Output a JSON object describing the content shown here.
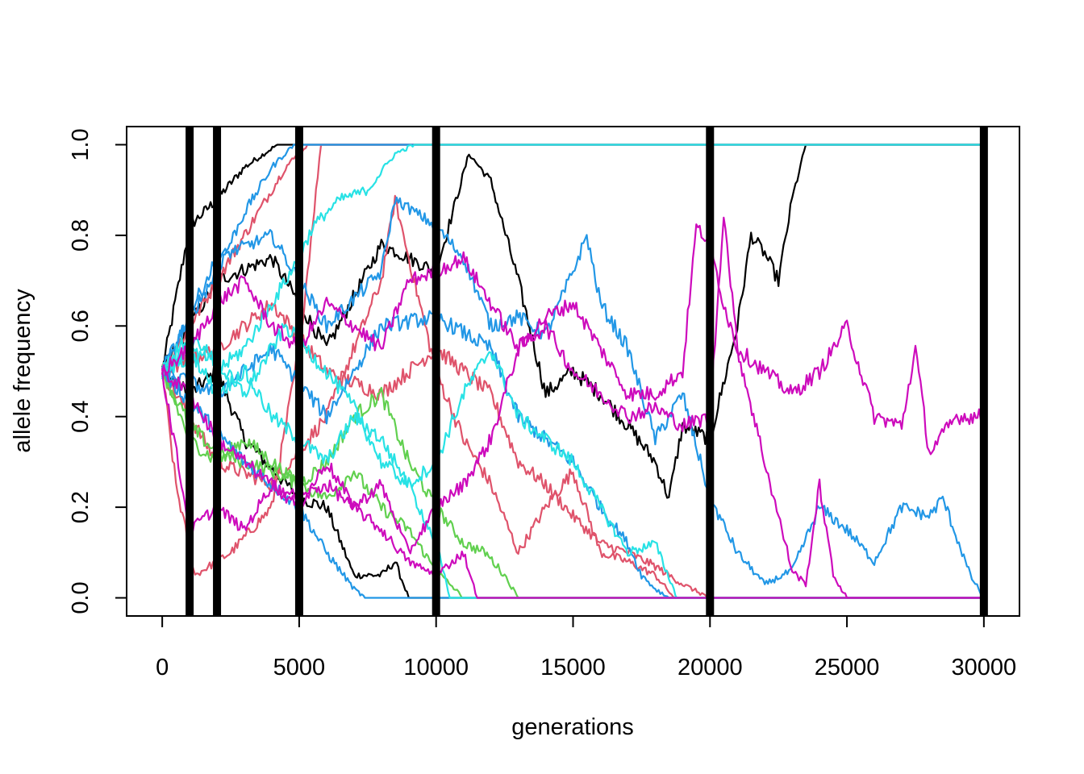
{
  "chart_data": {
    "type": "line",
    "title": "",
    "xlabel": "generations",
    "ylabel": "allele frequency",
    "xlim": [
      -1300,
      31300
    ],
    "ylim": [
      -0.04,
      1.04
    ],
    "x_ticks": [
      0,
      5000,
      10000,
      15000,
      20000,
      25000,
      30000
    ],
    "x_tick_labels": [
      "0",
      "5000",
      "10000",
      "15000",
      "20000",
      "25000",
      "30000"
    ],
    "y_ticks": [
      0.0,
      0.2,
      0.4,
      0.6,
      0.8,
      1.0
    ],
    "y_tick_labels": [
      "0.0",
      "0.2",
      "0.4",
      "0.6",
      "0.8",
      "1.0"
    ],
    "grid": false,
    "legend": "none",
    "vertical_lines": [
      1000,
      2000,
      5000,
      10000,
      20000,
      30000
    ],
    "vertical_line_color": "#000000",
    "series": [
      {
        "color": "#000000",
        "x": [
          0,
          1000,
          2000,
          3000,
          4200,
          30000
        ],
        "y": [
          0.5,
          0.82,
          0.88,
          0.95,
          1.0,
          1.0
        ]
      },
      {
        "color": "#000000",
        "x": [
          0,
          1000,
          2000,
          3000,
          5000,
          6000,
          7000,
          8000,
          8500,
          9000,
          10000,
          11500,
          30000
        ],
        "y": [
          0.5,
          0.45,
          0.5,
          0.35,
          0.22,
          0.2,
          0.05,
          0.05,
          0.08,
          0.0,
          0.0,
          0.0,
          0.0
        ]
      },
      {
        "color": "#000000",
        "x": [
          0,
          1000,
          2000,
          4000,
          6000,
          8000,
          10000,
          11200,
          12000,
          13000,
          14000,
          15000,
          16000,
          17000,
          18000,
          18500,
          19000,
          20000,
          21000,
          21500,
          22000,
          22500,
          23000,
          23500,
          30000
        ],
        "y": [
          0.5,
          0.6,
          0.7,
          0.75,
          0.55,
          0.78,
          0.72,
          0.98,
          0.92,
          0.7,
          0.45,
          0.5,
          0.45,
          0.38,
          0.3,
          0.22,
          0.38,
          0.35,
          0.6,
          0.8,
          0.76,
          0.7,
          0.88,
          1.0,
          1.0
        ]
      },
      {
        "color": "#DF536B",
        "x": [
          0,
          500,
          1200,
          2500,
          4000,
          5000,
          5800,
          30000
        ],
        "y": [
          0.5,
          0.25,
          0.05,
          0.1,
          0.2,
          0.55,
          1.0,
          1.0
        ]
      },
      {
        "color": "#DF536B",
        "x": [
          0,
          1000,
          2000,
          3000,
          4500,
          5300,
          30000
        ],
        "y": [
          0.5,
          0.6,
          0.7,
          0.8,
          0.95,
          1.0,
          1.0
        ]
      },
      {
        "color": "#DF536B",
        "x": [
          0,
          2000,
          4000,
          6000,
          8000,
          8500,
          9000,
          10000,
          11000,
          12000,
          13000,
          14000,
          15000,
          16000,
          17000,
          18000,
          18700,
          30000
        ],
        "y": [
          0.5,
          0.3,
          0.25,
          0.4,
          0.7,
          0.88,
          0.75,
          0.5,
          0.35,
          0.25,
          0.1,
          0.2,
          0.28,
          0.1,
          0.08,
          0.05,
          0.0,
          0.0
        ]
      },
      {
        "color": "#DF536B",
        "x": [
          0,
          2000,
          4000,
          6000,
          8000,
          10000,
          11000,
          12000,
          13000,
          14000,
          15000,
          16000,
          17000,
          18000,
          19000,
          20000,
          30000
        ],
        "y": [
          0.5,
          0.55,
          0.65,
          0.5,
          0.45,
          0.55,
          0.5,
          0.45,
          0.3,
          0.25,
          0.18,
          0.12,
          0.1,
          0.07,
          0.03,
          0.0,
          0.0
        ]
      },
      {
        "color": "#61D04F",
        "x": [
          0,
          1000,
          2000,
          3000,
          4000,
          5000,
          6000,
          7000,
          8000,
          9000,
          10000,
          11000,
          11800,
          12500,
          13000,
          30000
        ],
        "y": [
          0.5,
          0.35,
          0.3,
          0.35,
          0.3,
          0.25,
          0.3,
          0.4,
          0.45,
          0.3,
          0.2,
          0.12,
          0.1,
          0.05,
          0.0,
          0.0
        ]
      },
      {
        "color": "#61D04F",
        "x": [
          0,
          1000,
          2000,
          4000,
          6000,
          7000,
          8000,
          9000,
          10000,
          11000,
          30000
        ],
        "y": [
          0.5,
          0.38,
          0.32,
          0.28,
          0.22,
          0.28,
          0.2,
          0.15,
          0.06,
          0.0,
          0.0
        ]
      },
      {
        "color": "#2297E6",
        "x": [
          0,
          1000,
          2000,
          3000,
          4000,
          4800,
          30000
        ],
        "y": [
          0.5,
          0.62,
          0.72,
          0.85,
          0.95,
          1.0,
          1.0
        ]
      },
      {
        "color": "#2297E6",
        "x": [
          0,
          1500,
          3000,
          5000,
          6000,
          7000,
          7400,
          30000
        ],
        "y": [
          0.5,
          0.4,
          0.3,
          0.2,
          0.1,
          0.02,
          0.0,
          0.0
        ]
      },
      {
        "color": "#2297E6",
        "x": [
          0,
          2000,
          4000,
          6000,
          8000,
          8500,
          10000,
          11000,
          12000,
          13000,
          14000,
          15000,
          15500,
          16000,
          17000,
          18000,
          19000,
          20000,
          21000,
          22000,
          23000,
          24000,
          25000,
          26000,
          27000,
          28000,
          28500,
          29500,
          30000
        ],
        "y": [
          0.5,
          0.75,
          0.8,
          0.6,
          0.72,
          0.88,
          0.82,
          0.75,
          0.6,
          0.62,
          0.58,
          0.72,
          0.8,
          0.65,
          0.55,
          0.35,
          0.45,
          0.22,
          0.1,
          0.03,
          0.06,
          0.2,
          0.15,
          0.08,
          0.2,
          0.18,
          0.22,
          0.05,
          0.0
        ]
      },
      {
        "color": "#2297E6",
        "x": [
          0,
          2000,
          4000,
          6000,
          8000,
          10000,
          12000,
          13000,
          14000,
          15000,
          16000,
          17000,
          17500,
          18000,
          18500,
          30000
        ],
        "y": [
          0.5,
          0.45,
          0.55,
          0.4,
          0.6,
          0.62,
          0.55,
          0.4,
          0.35,
          0.3,
          0.2,
          0.12,
          0.05,
          0.02,
          0.0,
          0.0
        ]
      },
      {
        "color": "#28E2E5",
        "x": [
          0,
          1000,
          2000,
          3000,
          4000,
          5000,
          5500,
          6500,
          7500,
          8500,
          9200,
          30000
        ],
        "y": [
          0.5,
          0.58,
          0.5,
          0.55,
          0.65,
          0.75,
          0.82,
          0.88,
          0.9,
          0.98,
          1.0,
          1.0
        ]
      },
      {
        "color": "#28E2E5",
        "x": [
          0,
          1000,
          2000,
          3000,
          4000,
          5000,
          6000,
          7000,
          8000,
          9000,
          10000,
          11000,
          12000,
          13000,
          14000,
          15000,
          16000,
          17000,
          18000,
          18800,
          30000
        ],
        "y": [
          0.5,
          0.55,
          0.45,
          0.5,
          0.4,
          0.35,
          0.3,
          0.4,
          0.35,
          0.25,
          0.3,
          0.45,
          0.55,
          0.4,
          0.35,
          0.3,
          0.2,
          0.1,
          0.12,
          0.0,
          0.0
        ]
      },
      {
        "color": "#28E2E5",
        "x": [
          0,
          1500,
          3000,
          4500,
          6000,
          7000,
          8000,
          9000,
          10000,
          10500,
          30000
        ],
        "y": [
          0.5,
          0.55,
          0.45,
          0.6,
          0.5,
          0.42,
          0.3,
          0.25,
          0.12,
          0.0,
          0.0
        ]
      },
      {
        "color": "#CD0BBC",
        "x": [
          0,
          1000,
          2000,
          3000,
          4000,
          5000,
          6000,
          7000,
          8000,
          9000,
          10000,
          11000,
          12000,
          13000,
          14000,
          15000,
          16000,
          17000,
          18000,
          19000,
          19500,
          20000,
          20500,
          21000,
          22000,
          23000,
          24000,
          25000,
          26000,
          27000,
          27500,
          28000,
          29000,
          30000
        ],
        "y": [
          0.5,
          0.55,
          0.65,
          0.7,
          0.6,
          0.55,
          0.65,
          0.6,
          0.55,
          0.7,
          0.72,
          0.75,
          0.65,
          0.55,
          0.62,
          0.65,
          0.55,
          0.45,
          0.45,
          0.5,
          0.82,
          0.78,
          0.65,
          0.55,
          0.5,
          0.45,
          0.5,
          0.6,
          0.4,
          0.38,
          0.55,
          0.32,
          0.4,
          0.4
        ]
      },
      {
        "color": "#CD0BBC",
        "x": [
          0,
          1000,
          2000,
          3000,
          4000,
          5000,
          6000,
          7000,
          8000,
          9000,
          10000,
          11000,
          12000,
          13000,
          14000,
          15000,
          16000,
          17000,
          18000,
          19000,
          20000,
          20500,
          21000,
          22000,
          22500,
          23000,
          23500,
          24000,
          24500,
          25000,
          30000
        ],
        "y": [
          0.5,
          0.15,
          0.2,
          0.15,
          0.25,
          0.2,
          0.3,
          0.2,
          0.25,
          0.1,
          0.2,
          0.25,
          0.35,
          0.55,
          0.6,
          0.5,
          0.45,
          0.4,
          0.42,
          0.38,
          0.4,
          0.85,
          0.55,
          0.3,
          0.18,
          0.06,
          0.03,
          0.25,
          0.05,
          0.0,
          0.0
        ]
      },
      {
        "color": "#CD0BBC",
        "x": [
          0,
          1000,
          2000,
          3000,
          4000,
          5000,
          6000,
          7000,
          8000,
          9000,
          10000,
          11000,
          11500,
          30000
        ],
        "y": [
          0.5,
          0.45,
          0.35,
          0.3,
          0.25,
          0.22,
          0.25,
          0.2,
          0.15,
          0.08,
          0.05,
          0.1,
          0.0,
          0.0
        ]
      },
      {
        "color": "#9E9E9E",
        "x": [],
        "y": []
      }
    ]
  }
}
